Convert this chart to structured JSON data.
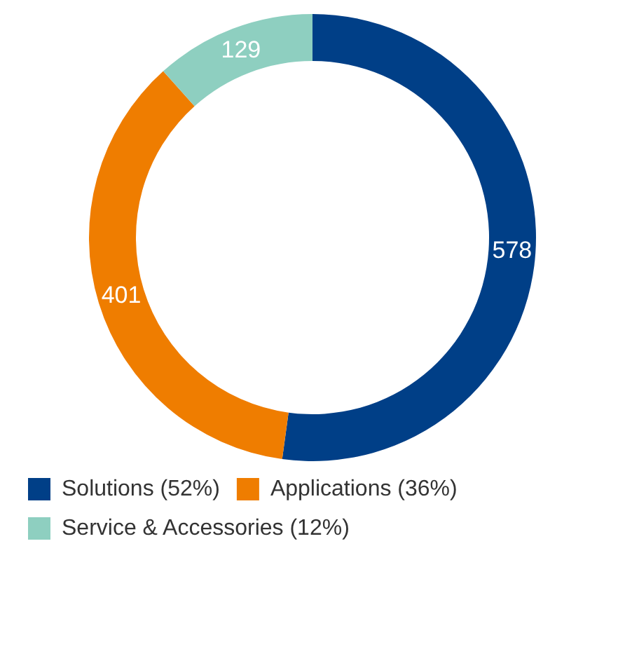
{
  "chart_data": {
    "type": "donut",
    "categories": [
      "Solutions (52%)",
      "Applications (36%)",
      "Service & Accessories (12%)"
    ],
    "values": [
      578,
      401,
      129
    ],
    "colors": [
      "#003f87",
      "#ef7d00",
      "#8ecfc0"
    ],
    "data_labels": true,
    "legend": "bottom"
  }
}
